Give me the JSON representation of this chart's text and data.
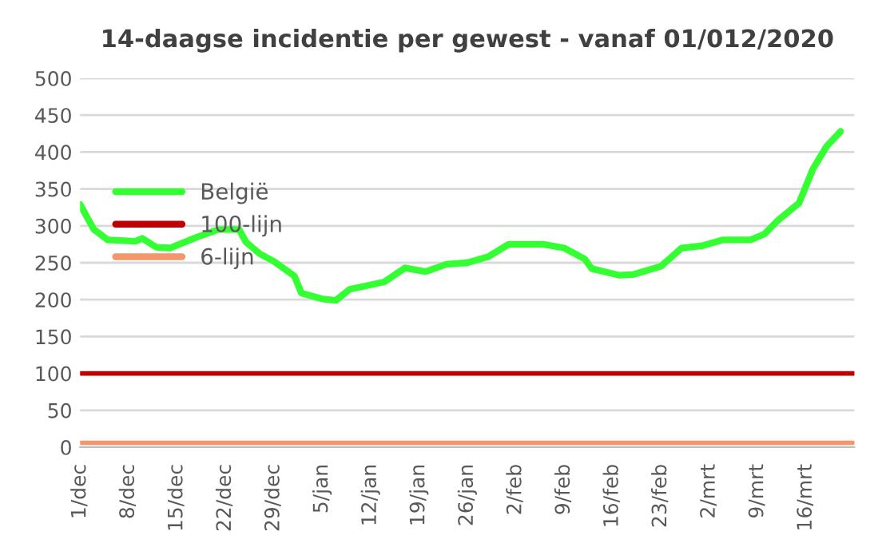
{
  "chart_data": {
    "type": "line",
    "title": "14-daagse incidentie per gewest - vanaf 01/012/2020",
    "series": [
      {
        "name": "België",
        "color": "#33ff33",
        "x": [
          "2020-12-01",
          "2020-12-03",
          "2020-12-05",
          "2020-12-09",
          "2020-12-10",
          "2020-12-12",
          "2020-12-14",
          "2020-12-18",
          "2020-12-21",
          "2020-12-24",
          "2020-12-25",
          "2020-12-27",
          "2020-12-29",
          "2021-01-01",
          "2021-01-02",
          "2021-01-05",
          "2021-01-07",
          "2021-01-09",
          "2021-01-12",
          "2021-01-14",
          "2021-01-17",
          "2021-01-20",
          "2021-01-23",
          "2021-01-26",
          "2021-01-29",
          "2021-02-01",
          "2021-02-06",
          "2021-02-09",
          "2021-02-12",
          "2021-02-13",
          "2021-02-17",
          "2021-02-19",
          "2021-02-23",
          "2021-02-26",
          "2021-03-01",
          "2021-03-04",
          "2021-03-08",
          "2021-03-10",
          "2021-03-12",
          "2021-03-15",
          "2021-03-17",
          "2021-03-19",
          "2021-03-21"
        ],
        "values": [
          329,
          295,
          281,
          279,
          283,
          271,
          270,
          285,
          295,
          295,
          278,
          262,
          252,
          232,
          209,
          201,
          199,
          214,
          220,
          224,
          243,
          238,
          248,
          250,
          258,
          275,
          275,
          270,
          255,
          242,
          233,
          234,
          245,
          270,
          273,
          281,
          281,
          289,
          308,
          331,
          377,
          408,
          428
        ]
      },
      {
        "name": "100-lijn",
        "color": "#c00000",
        "x": [
          "2020-12-01",
          "2021-03-23"
        ],
        "values": [
          100,
          100
        ]
      },
      {
        "name": "6-lijn",
        "color": "#f4956a",
        "x": [
          "2020-12-01",
          "2021-03-23"
        ],
        "values": [
          6,
          6
        ]
      }
    ],
    "xlim": [
      "2020-12-01",
      "2021-03-23"
    ],
    "xticks": [
      {
        "value": "2020-12-01",
        "label": "1/dec"
      },
      {
        "value": "2020-12-08",
        "label": "8/dec"
      },
      {
        "value": "2020-12-15",
        "label": "15/dec"
      },
      {
        "value": "2020-12-22",
        "label": "22/dec"
      },
      {
        "value": "2020-12-29",
        "label": "29/dec"
      },
      {
        "value": "2021-01-05",
        "label": "5/jan"
      },
      {
        "value": "2021-01-12",
        "label": "12/jan"
      },
      {
        "value": "2021-01-19",
        "label": "19/jan"
      },
      {
        "value": "2021-01-26",
        "label": "26/jan"
      },
      {
        "value": "2021-02-02",
        "label": "2/feb"
      },
      {
        "value": "2021-02-09",
        "label": "9/feb"
      },
      {
        "value": "2021-02-16",
        "label": "16/feb"
      },
      {
        "value": "2021-02-23",
        "label": "23/feb"
      },
      {
        "value": "2021-03-02",
        "label": "2/mrt"
      },
      {
        "value": "2021-03-09",
        "label": "9/mrt"
      },
      {
        "value": "2021-03-16",
        "label": "16/mrt"
      }
    ],
    "ylim": [
      0,
      500
    ],
    "yticks": [
      0,
      50,
      100,
      150,
      200,
      250,
      300,
      350,
      400,
      450,
      500
    ],
    "grid": "y",
    "legend": "left",
    "marker": "none",
    "line_style": "solid"
  }
}
